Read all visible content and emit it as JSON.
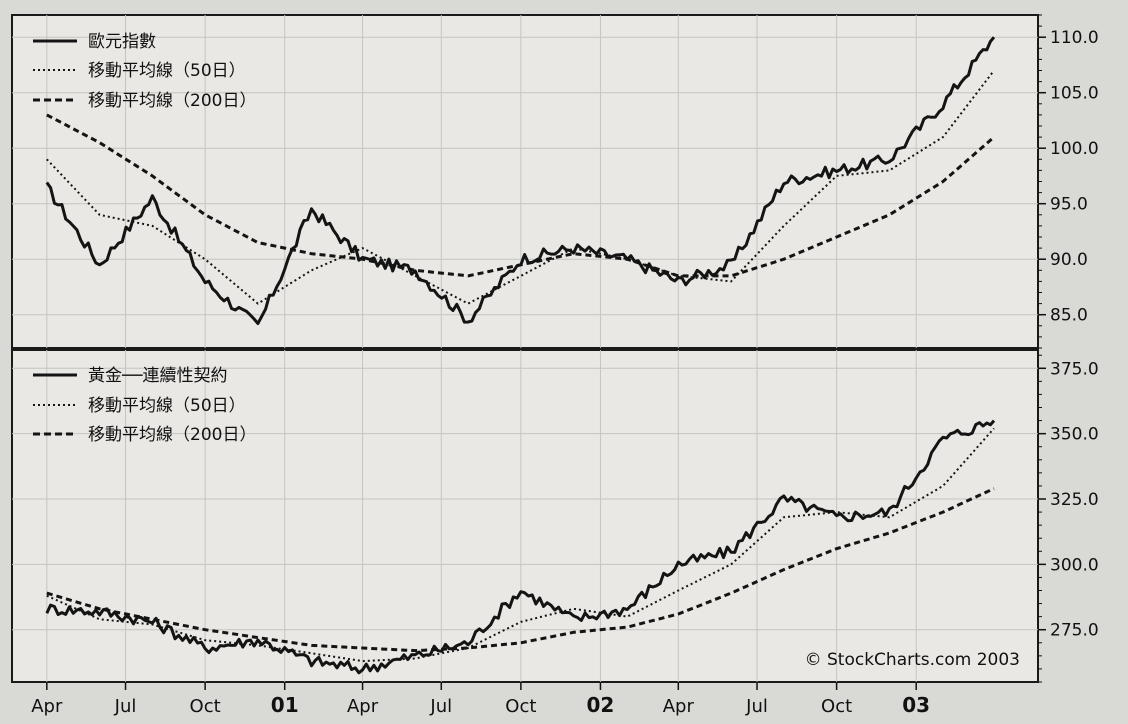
{
  "chart_data": [
    {
      "type": "line",
      "title": "",
      "ylabel": "",
      "ylim": [
        82,
        112
      ],
      "yticks": [
        85.0,
        90.0,
        95.0,
        100.0,
        105.0,
        110.0
      ],
      "ytick_labels": [
        "85.0",
        "90.0",
        "95.0",
        "100.0",
        "105.0",
        "110.0"
      ],
      "grid": true,
      "legend_position": "top-left",
      "x": [
        "2000-04",
        "2000-06",
        "2000-08",
        "2000-10",
        "2000-12",
        "2001-02",
        "2001-04",
        "2001-06",
        "2001-08",
        "2001-10",
        "2001-12",
        "2002-02",
        "2002-04",
        "2002-06",
        "2002-08",
        "2002-10",
        "2002-12",
        "2003-02",
        "2003-04"
      ],
      "series": [
        {
          "name": "歐元指數",
          "style": "solid",
          "values": [
            96.5,
            89.5,
            95.5,
            88.0,
            84.0,
            94.5,
            90.0,
            89.0,
            84.5,
            90.0,
            91.0,
            90.0,
            88.0,
            89.5,
            97.0,
            98.0,
            99.0,
            104.0,
            110.0
          ]
        },
        {
          "name": "移動平均線（50日）",
          "style": "dotted",
          "values": [
            99.0,
            94.0,
            93.0,
            90.0,
            86.0,
            89.0,
            91.0,
            88.5,
            86.0,
            88.5,
            91.0,
            90.0,
            88.5,
            88.0,
            93.0,
            97.5,
            98.0,
            101.0,
            107.0
          ]
        },
        {
          "name": "移動平均線（200日）",
          "style": "dashed",
          "values": [
            103.0,
            100.5,
            97.5,
            94.0,
            91.5,
            90.5,
            90.0,
            89.0,
            88.5,
            89.5,
            90.5,
            90.0,
            88.5,
            88.5,
            90.0,
            92.0,
            94.0,
            97.0,
            101.0
          ]
        }
      ]
    },
    {
      "type": "line",
      "title": "",
      "ylabel": "",
      "ylim": [
        255,
        382
      ],
      "yticks": [
        275.0,
        300.0,
        325.0,
        350.0,
        375.0
      ],
      "ytick_labels": [
        "275.0",
        "300.0",
        "325.0",
        "350.0",
        "375.0"
      ],
      "grid": true,
      "legend_position": "top-left",
      "x": [
        "2000-04",
        "2000-06",
        "2000-08",
        "2000-10",
        "2000-12",
        "2001-02",
        "2001-04",
        "2001-06",
        "2001-08",
        "2001-10",
        "2001-12",
        "2002-02",
        "2002-04",
        "2002-06",
        "2002-08",
        "2002-10",
        "2002-12",
        "2003-02",
        "2003-04"
      ],
      "series": [
        {
          "name": "黃金──連續性契約",
          "style": "solid",
          "values": [
            283.0,
            282.0,
            278.0,
            268.0,
            271.0,
            263.0,
            260.0,
            265.0,
            270.0,
            290.0,
            279.0,
            283.0,
            300.0,
            305.0,
            325.0,
            318.0,
            320.0,
            348.0,
            355.0
          ]
        },
        {
          "name": "移動平均線（50日）",
          "style": "dotted",
          "values": [
            288.0,
            279.0,
            277.0,
            271.0,
            269.0,
            266.0,
            263.0,
            264.0,
            268.0,
            278.0,
            283.0,
            280.0,
            290.0,
            300.0,
            318.0,
            320.0,
            318.0,
            330.0,
            352.0
          ]
        },
        {
          "name": "移動平均線（200日）",
          "style": "dashed",
          "values": [
            289.0,
            283.0,
            279.0,
            275.0,
            272.0,
            269.0,
            268.0,
            267.0,
            268.0,
            270.0,
            274.0,
            276.0,
            281.0,
            289.0,
            298.0,
            306.0,
            312.0,
            320.0,
            329.0
          ]
        }
      ]
    }
  ],
  "x_axis": {
    "labels": [
      {
        "text": "Apr",
        "date": "2000-04",
        "bold": false
      },
      {
        "text": "Jul",
        "date": "2000-07",
        "bold": false
      },
      {
        "text": "Oct",
        "date": "2000-10",
        "bold": false
      },
      {
        "text": "01",
        "date": "2001-01",
        "bold": true
      },
      {
        "text": "Apr",
        "date": "2001-04",
        "bold": false
      },
      {
        "text": "Jul",
        "date": "2001-07",
        "bold": false
      },
      {
        "text": "Oct",
        "date": "2001-10",
        "bold": false
      },
      {
        "text": "02",
        "date": "2002-01",
        "bold": true
      },
      {
        "text": "Apr",
        "date": "2002-04",
        "bold": false
      },
      {
        "text": "Jul",
        "date": "2002-07",
        "bold": false
      },
      {
        "text": "Oct",
        "date": "2002-10",
        "bold": false
      },
      {
        "text": "03",
        "date": "2003-01",
        "bold": true
      }
    ]
  },
  "copyright": "© StockCharts.com 2003",
  "colors": {
    "background": "#d9d9d6",
    "panel": "#e9e8e4",
    "grid": "#c4c4c0",
    "line": "#141414"
  }
}
